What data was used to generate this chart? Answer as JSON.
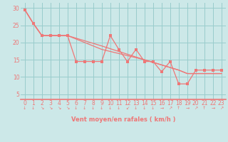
{
  "xlabel": "Vent moyen/en rafales ( km/h )",
  "background_color": "#cce8e8",
  "grid_color": "#99cccc",
  "line_color": "#ee7777",
  "axis_color": "#ee7777",
  "xlim": [
    -0.5,
    23.5
  ],
  "ylim": [
    3.5,
    31.5
  ],
  "yticks": [
    5,
    10,
    15,
    20,
    25,
    30
  ],
  "xticks": [
    0,
    1,
    2,
    3,
    4,
    5,
    6,
    7,
    8,
    9,
    10,
    11,
    12,
    13,
    14,
    15,
    16,
    17,
    18,
    19,
    20,
    21,
    22,
    23
  ],
  "line1_x": [
    0,
    1,
    2,
    3,
    4,
    5,
    6,
    7,
    8,
    9,
    10,
    11,
    12,
    13,
    14,
    15,
    16,
    17,
    18,
    19,
    20,
    21,
    22,
    23
  ],
  "line1_y": [
    29.5,
    25.5,
    22,
    22,
    22,
    22,
    14.5,
    14.5,
    14.5,
    14.5,
    22,
    18,
    14.5,
    18,
    14.5,
    14.5,
    11.5,
    14.5,
    8,
    8,
    12,
    12,
    12,
    12
  ],
  "line2_x": [
    0,
    1,
    2,
    3,
    5,
    9,
    14,
    18,
    19,
    20,
    21,
    22,
    23
  ],
  "line2_y": [
    29.5,
    25.5,
    22,
    22,
    22,
    18,
    15,
    12,
    11,
    11,
    11,
    11,
    11
  ],
  "line3_x": [
    0,
    1,
    2,
    5,
    9,
    14,
    18,
    19,
    20,
    21,
    22,
    23
  ],
  "line3_y": [
    29.5,
    25.5,
    22,
    22,
    19,
    15,
    12,
    11,
    11,
    11,
    11,
    11
  ],
  "wind_arrows": [
    0,
    1,
    2,
    3,
    4,
    5,
    6,
    7,
    8,
    9,
    10,
    11,
    12,
    13,
    14,
    15,
    16,
    17,
    18,
    19,
    20,
    21,
    22,
    23
  ],
  "arrow_chars": [
    "↓",
    "↓",
    "↘",
    "↘",
    "↘",
    "↘",
    "↓",
    "↓",
    "↓",
    "↓",
    "↓",
    "↓",
    "↙",
    "↓",
    "↓",
    "↓",
    "→",
    "↗",
    "↑",
    "→",
    "↗",
    "↑",
    "→",
    "↗"
  ]
}
